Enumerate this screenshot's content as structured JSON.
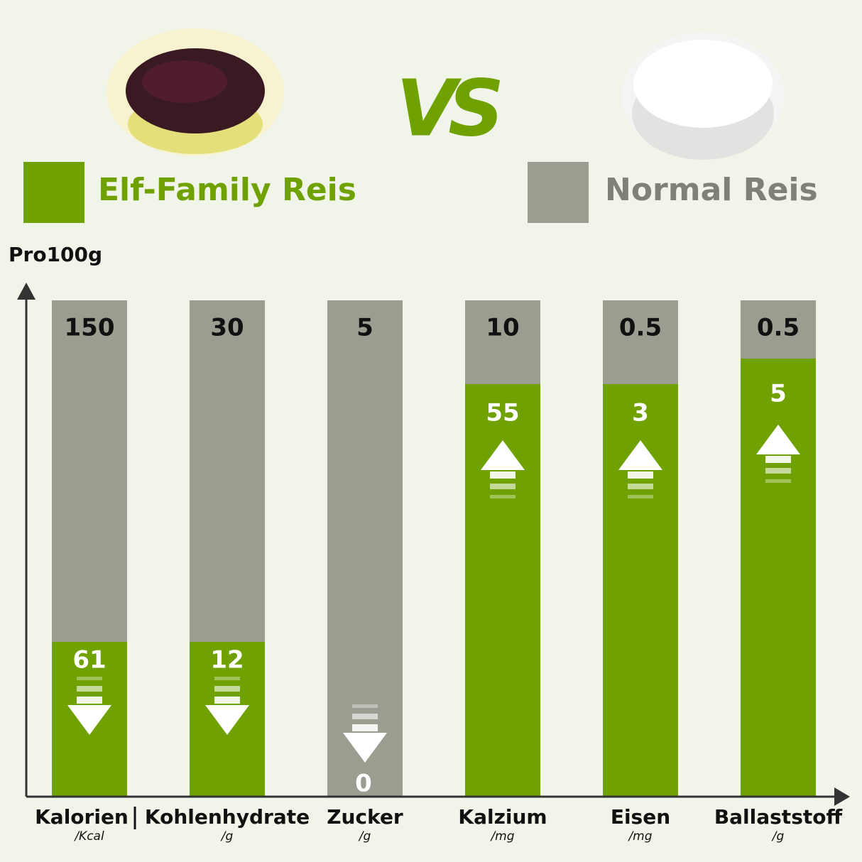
{
  "vs": "VS",
  "legend": {
    "elf": "Elf-Family Reis",
    "normal": "Normal Reis"
  },
  "axis_label": "Pro100g",
  "columns": [
    {
      "label": "Kalorien",
      "unit": "/Kcal",
      "normal": 150,
      "elf": 61
    },
    {
      "label": "Kohlenhydrate",
      "unit": "/g",
      "normal": 30,
      "elf": 12
    },
    {
      "label": "Zucker",
      "unit": "/g",
      "normal": 5,
      "elf": 0
    },
    {
      "label": "Kalzium",
      "unit": "/mg",
      "normal": 10,
      "elf": 55
    },
    {
      "label": "Eisen",
      "unit": "/mg",
      "normal": 0.5,
      "elf": 3
    },
    {
      "label": "Ballaststoff",
      "unit": "/g",
      "normal": 0.5,
      "elf": 5
    }
  ]
}
